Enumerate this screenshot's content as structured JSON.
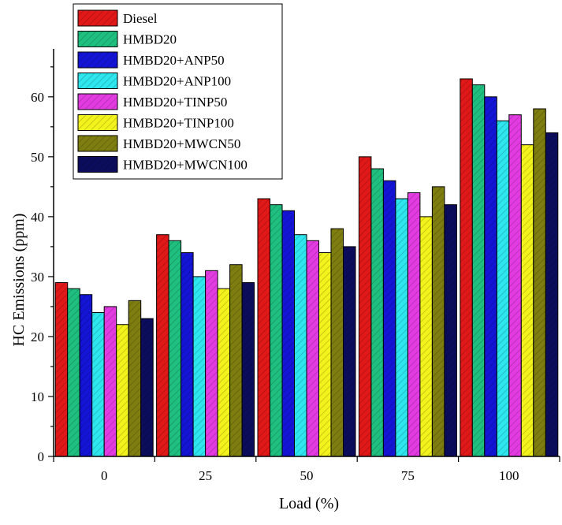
{
  "chart_data": {
    "type": "bar",
    "title": "",
    "xlabel": "Load (%)",
    "ylabel": "HC Emissions (ppm)",
    "ylim": [
      0,
      68
    ],
    "yticks": [
      0,
      10,
      20,
      30,
      40,
      50,
      60
    ],
    "categories": [
      "0",
      "25",
      "50",
      "75",
      "100"
    ],
    "grid": false,
    "legend_position": "top-left",
    "series": [
      {
        "name": "Diesel",
        "color": "#e01818",
        "hatch": "diagonal",
        "values": [
          29,
          37,
          43,
          50,
          63
        ]
      },
      {
        "name": "HMBD20",
        "color": "#1fbf7f",
        "hatch": "diagonal",
        "values": [
          28,
          36,
          42,
          48,
          62
        ]
      },
      {
        "name": "HMBD20+ANP50",
        "color": "#1414d6",
        "hatch": "diagonal",
        "values": [
          27,
          34,
          41,
          46,
          60
        ]
      },
      {
        "name": "HMBD20+ANP100",
        "color": "#2ee6ee",
        "hatch": "diagonal",
        "values": [
          24,
          30,
          37,
          43,
          56
        ]
      },
      {
        "name": "HMBD20+TINP50",
        "color": "#e23be2",
        "hatch": "diagonal",
        "values": [
          25,
          31,
          36,
          44,
          57
        ]
      },
      {
        "name": "HMBD20+TINP100",
        "color": "#f2f21c",
        "hatch": "diagonal",
        "values": [
          22,
          28,
          34,
          40,
          52
        ]
      },
      {
        "name": "HMBD20+MWCN50",
        "color": "#7d7d10",
        "hatch": "diagonal",
        "values": [
          26,
          32,
          38,
          45,
          58
        ]
      },
      {
        "name": "HMBD20+MWCN100",
        "color": "#0c0c5c",
        "hatch": "diagonal",
        "values": [
          23,
          29,
          35,
          42,
          54
        ]
      }
    ]
  }
}
